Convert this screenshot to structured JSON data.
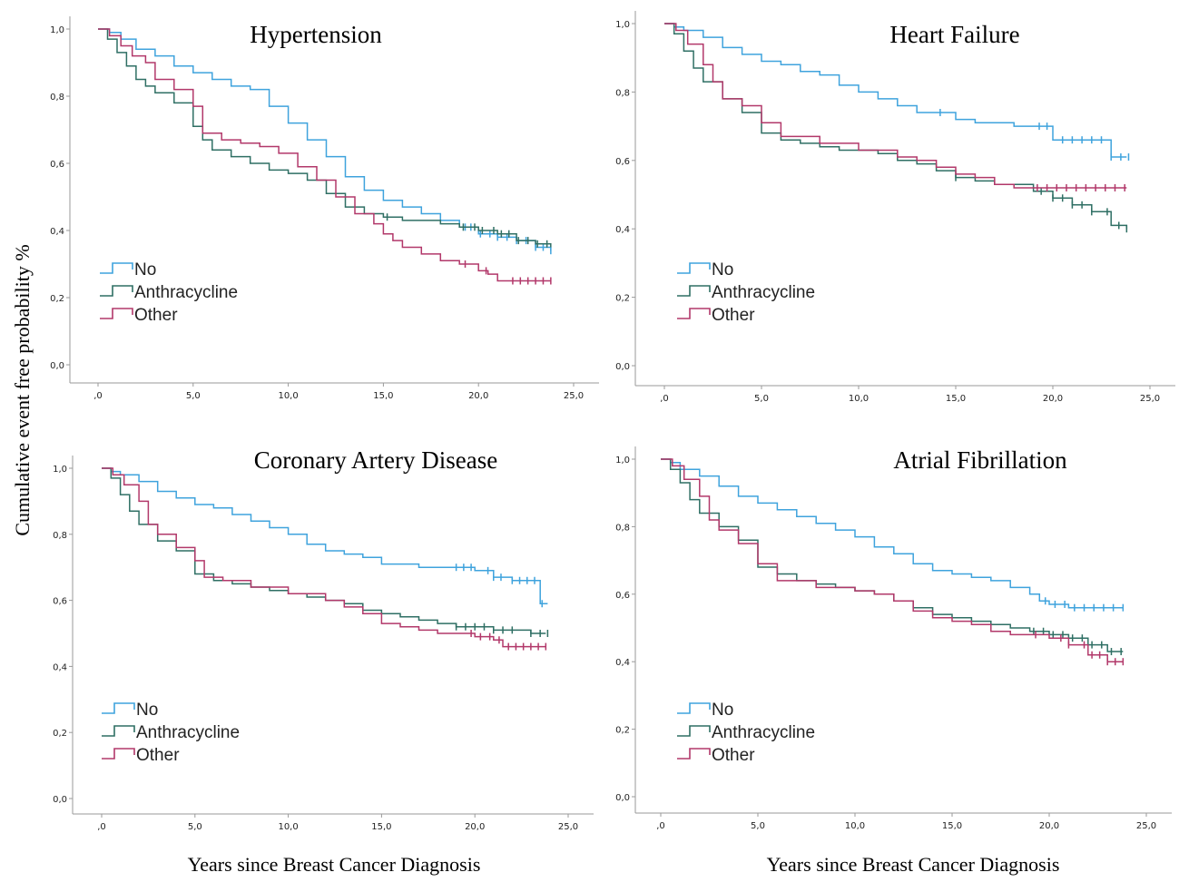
{
  "figure": {
    "ylabel": "Cumulative event  free probability  %",
    "xlabel": "Years since Breast Cancer Diagnosis"
  },
  "colors": {
    "No": "#3fa3dd",
    "Anthracycline": "#2f6f64",
    "Other": "#b2386a",
    "axis": "#9a9a9a"
  },
  "chart_data": [
    {
      "type": "line",
      "step": true,
      "title": "Hypertension",
      "xlim": [
        0,
        25
      ],
      "ylim": [
        0,
        1
      ],
      "x_ticks": [
        ",0",
        "5,0",
        "10,0",
        "15,0",
        "20,0",
        "25,0"
      ],
      "y_ticks": [
        "0,0",
        "0,2",
        "0,4",
        "0,6",
        "0,8",
        "1,0"
      ],
      "legend": [
        "No",
        "Anthracycline",
        "Other"
      ],
      "series": [
        {
          "name": "No",
          "x": [
            0,
            0.6,
            1.2,
            2.0,
            3.0,
            4.0,
            5.0,
            6.0,
            7.0,
            8.0,
            9.0,
            10.0,
            11.0,
            12.0,
            13.0,
            14.0,
            15.0,
            16.0,
            17.0,
            18.0,
            19.0,
            20.0,
            21.0,
            22.0,
            23.0,
            23.8
          ],
          "y": [
            1.0,
            0.99,
            0.97,
            0.94,
            0.92,
            0.89,
            0.87,
            0.85,
            0.83,
            0.82,
            0.77,
            0.72,
            0.67,
            0.62,
            0.56,
            0.52,
            0.49,
            0.47,
            0.45,
            0.43,
            0.41,
            0.39,
            0.38,
            0.37,
            0.35,
            0.34
          ],
          "censor_x": [
            19.3,
            19.6,
            20.1,
            20.6,
            21.0,
            21.5,
            22.0,
            22.5,
            23.0,
            23.4,
            23.8
          ]
        },
        {
          "name": "Anthracycline",
          "x": [
            0,
            0.5,
            1.0,
            1.5,
            2.0,
            2.5,
            3.0,
            4.0,
            5.0,
            5.5,
            6.0,
            7.0,
            8.0,
            9.0,
            10.0,
            11.0,
            12.0,
            13.0,
            14.0,
            15.0,
            16.0,
            17.0,
            18.0,
            19.0,
            20.0,
            21.0,
            22.0,
            23.0,
            23.8
          ],
          "y": [
            1.0,
            0.97,
            0.93,
            0.89,
            0.85,
            0.83,
            0.81,
            0.78,
            0.71,
            0.67,
            0.64,
            0.62,
            0.6,
            0.58,
            0.57,
            0.55,
            0.51,
            0.47,
            0.45,
            0.44,
            0.43,
            0.43,
            0.42,
            0.41,
            0.4,
            0.39,
            0.37,
            0.36,
            0.35
          ],
          "censor_x": [
            15.2,
            19.2,
            19.8,
            20.2,
            20.8,
            21.2,
            21.6,
            22.1,
            22.6,
            23.1,
            23.6
          ]
        },
        {
          "name": "Other",
          "x": [
            0,
            0.6,
            1.2,
            1.8,
            2.5,
            3.0,
            4.0,
            5.0,
            5.5,
            6.5,
            7.5,
            8.5,
            9.5,
            10.5,
            11.5,
            12.5,
            13.5,
            14.5,
            15.0,
            15.5,
            16.0,
            17.0,
            18.0,
            19.0,
            20.0,
            20.5,
            21.0,
            22.0,
            23.0,
            23.8
          ],
          "y": [
            1.0,
            0.98,
            0.95,
            0.92,
            0.9,
            0.85,
            0.82,
            0.77,
            0.69,
            0.67,
            0.66,
            0.65,
            0.63,
            0.59,
            0.55,
            0.5,
            0.45,
            0.42,
            0.39,
            0.37,
            0.35,
            0.33,
            0.31,
            0.3,
            0.28,
            0.27,
            0.25,
            0.25,
            0.25,
            0.25
          ],
          "censor_x": [
            19.3,
            20.4,
            21.8,
            22.2,
            22.6,
            23.0,
            23.4,
            23.8
          ]
        }
      ]
    },
    {
      "type": "line",
      "step": true,
      "title": "Heart Failure",
      "xlim": [
        0,
        25
      ],
      "ylim": [
        0,
        1
      ],
      "x_ticks": [
        ",0",
        "5,0",
        "10,0",
        "15,0",
        "20,0",
        "25,0"
      ],
      "y_ticks": [
        "0,0",
        "0,2",
        "0,4",
        "0,6",
        "0,8",
        "1,0"
      ],
      "legend": [
        "No",
        "Anthracycline",
        "Other"
      ],
      "series": [
        {
          "name": "No",
          "x": [
            0,
            0.5,
            1.0,
            2.0,
            3.0,
            4.0,
            5.0,
            6.0,
            7.0,
            8.0,
            9.0,
            10.0,
            11.0,
            12.0,
            13.0,
            14.0,
            15.0,
            16.0,
            17.0,
            18.0,
            19.0,
            20.0,
            21.0,
            22.0,
            23.0,
            23.8
          ],
          "y": [
            1.0,
            0.99,
            0.98,
            0.96,
            0.93,
            0.91,
            0.89,
            0.88,
            0.86,
            0.85,
            0.82,
            0.8,
            0.78,
            0.76,
            0.74,
            0.74,
            0.72,
            0.71,
            0.71,
            0.7,
            0.7,
            0.66,
            0.66,
            0.66,
            0.61,
            0.61
          ],
          "censor_x": [
            14.2,
            19.3,
            19.7,
            20.5,
            21.0,
            21.5,
            22.0,
            22.5,
            23.0,
            23.5,
            23.9
          ]
        },
        {
          "name": "Anthracycline",
          "x": [
            0,
            0.5,
            1.0,
            1.5,
            2.0,
            3.0,
            4.0,
            5.0,
            6.0,
            7.0,
            8.0,
            9.0,
            10.0,
            11.0,
            12.0,
            13.0,
            14.0,
            15.0,
            16.0,
            17.0,
            18.0,
            19.0,
            20.0,
            21.0,
            22.0,
            23.0,
            23.8
          ],
          "y": [
            1.0,
            0.97,
            0.92,
            0.87,
            0.83,
            0.78,
            0.74,
            0.68,
            0.66,
            0.65,
            0.64,
            0.63,
            0.63,
            0.62,
            0.6,
            0.59,
            0.57,
            0.55,
            0.54,
            0.53,
            0.53,
            0.51,
            0.49,
            0.47,
            0.45,
            0.41,
            0.4
          ],
          "censor_x": [
            15.0,
            19.4,
            20.0,
            20.5,
            21.0,
            21.5,
            22.0,
            22.8,
            23.4,
            23.8
          ]
        },
        {
          "name": "Other",
          "x": [
            0,
            0.6,
            1.2,
            2.0,
            2.5,
            3.0,
            4.0,
            5.0,
            6.0,
            8.0,
            10.0,
            12.0,
            13.0,
            14.0,
            15.0,
            16.0,
            17.0,
            18.0,
            19.0,
            20.0,
            21.0,
            22.0,
            23.0,
            23.8
          ],
          "y": [
            1.0,
            0.98,
            0.94,
            0.88,
            0.83,
            0.78,
            0.76,
            0.71,
            0.67,
            0.65,
            0.63,
            0.61,
            0.6,
            0.58,
            0.56,
            0.55,
            0.53,
            0.52,
            0.52,
            0.52,
            0.52,
            0.52,
            0.52,
            0.52
          ],
          "censor_x": [
            19.2,
            19.7,
            20.2,
            20.7,
            21.2,
            21.7,
            22.2,
            22.7,
            23.2,
            23.7
          ]
        }
      ]
    },
    {
      "type": "line",
      "step": true,
      "title": "Coronary Artery Disease",
      "xlim": [
        0,
        25
      ],
      "ylim": [
        0,
        1
      ],
      "x_ticks": [
        ",0",
        "5,0",
        "10,0",
        "15,0",
        "20,0",
        "25,0"
      ],
      "y_ticks": [
        "0,0",
        "0,2",
        "0,4",
        "0,6",
        "0,8",
        "1,0"
      ],
      "legend": [
        "No",
        "Anthracycline",
        "Other"
      ],
      "series": [
        {
          "name": "No",
          "x": [
            0,
            0.5,
            1.0,
            2.0,
            3.0,
            4.0,
            5.0,
            6.0,
            7.0,
            8.0,
            9.0,
            10.0,
            11.0,
            12.0,
            13.0,
            14.0,
            15.0,
            16.0,
            17.0,
            18.0,
            19.0,
            20.0,
            21.0,
            22.0,
            23.0,
            23.5,
            23.9
          ],
          "y": [
            1.0,
            0.99,
            0.98,
            0.96,
            0.93,
            0.91,
            0.89,
            0.88,
            0.86,
            0.84,
            0.82,
            0.8,
            0.77,
            0.75,
            0.74,
            0.73,
            0.71,
            0.71,
            0.7,
            0.7,
            0.7,
            0.69,
            0.67,
            0.66,
            0.66,
            0.59,
            0.59
          ],
          "censor_x": [
            19.0,
            19.4,
            19.8,
            20.7,
            21.0,
            21.4,
            22.0,
            22.4,
            22.8,
            23.2,
            23.6
          ]
        },
        {
          "name": "Anthracycline",
          "x": [
            0,
            0.5,
            1.0,
            1.5,
            2.0,
            3.0,
            4.0,
            5.0,
            6.0,
            7.0,
            8.0,
            9.0,
            10.0,
            11.0,
            12.0,
            13.0,
            14.0,
            15.0,
            16.0,
            17.0,
            18.0,
            19.0,
            20.0,
            21.0,
            22.0,
            23.0,
            23.8
          ],
          "y": [
            1.0,
            0.97,
            0.92,
            0.87,
            0.83,
            0.78,
            0.75,
            0.68,
            0.66,
            0.65,
            0.64,
            0.63,
            0.62,
            0.61,
            0.6,
            0.59,
            0.57,
            0.56,
            0.55,
            0.54,
            0.53,
            0.52,
            0.52,
            0.51,
            0.51,
            0.5,
            0.5
          ],
          "censor_x": [
            19.0,
            19.5,
            20.0,
            20.5,
            21.0,
            21.5,
            22.0,
            23.0,
            23.5,
            23.9
          ]
        },
        {
          "name": "Other",
          "x": [
            0,
            0.6,
            1.2,
            2.0,
            2.5,
            3.0,
            4.0,
            5.0,
            5.5,
            6.5,
            8.0,
            10.0,
            11.0,
            12.0,
            13.0,
            14.0,
            15.0,
            16.0,
            17.0,
            18.0,
            19.0,
            20.0,
            21.0,
            21.5,
            22.0,
            23.0,
            23.8
          ],
          "y": [
            1.0,
            0.98,
            0.95,
            0.9,
            0.83,
            0.8,
            0.76,
            0.72,
            0.67,
            0.66,
            0.64,
            0.62,
            0.62,
            0.6,
            0.58,
            0.56,
            0.53,
            0.52,
            0.51,
            0.5,
            0.5,
            0.49,
            0.48,
            0.46,
            0.46,
            0.46,
            0.46
          ],
          "censor_x": [
            19.8,
            20.3,
            20.8,
            21.3,
            21.8,
            22.2,
            22.6,
            23.0,
            23.4,
            23.8
          ]
        }
      ]
    },
    {
      "type": "line",
      "step": true,
      "title": "Atrial Fibrillation",
      "xlim": [
        0,
        25
      ],
      "ylim": [
        0,
        1
      ],
      "x_ticks": [
        ",0",
        "5,0",
        "10,0",
        "15,0",
        "20,0",
        "25,0"
      ],
      "y_ticks": [
        "0,0",
        "0,2",
        "0,4",
        "0,6",
        "0,8",
        "1,0"
      ],
      "legend": [
        "No",
        "Anthracycline",
        "Other"
      ],
      "series": [
        {
          "name": "No",
          "x": [
            0,
            0.5,
            1.0,
            2.0,
            3.0,
            4.0,
            5.0,
            6.0,
            7.0,
            8.0,
            9.0,
            10.0,
            11.0,
            12.0,
            13.0,
            14.0,
            15.0,
            16.0,
            17.0,
            18.0,
            19.0,
            19.5,
            20.0,
            21.0,
            22.0,
            23.0,
            23.8
          ],
          "y": [
            1.0,
            0.99,
            0.97,
            0.95,
            0.92,
            0.89,
            0.87,
            0.85,
            0.83,
            0.81,
            0.79,
            0.77,
            0.74,
            0.72,
            0.69,
            0.67,
            0.66,
            0.65,
            0.64,
            0.62,
            0.6,
            0.58,
            0.57,
            0.56,
            0.56,
            0.56,
            0.56
          ],
          "censor_x": [
            19.8,
            20.3,
            20.8,
            21.3,
            21.8,
            22.3,
            22.8,
            23.3,
            23.8
          ]
        },
        {
          "name": "Anthracycline",
          "x": [
            0,
            0.5,
            1.0,
            1.5,
            2.0,
            3.0,
            4.0,
            5.0,
            6.0,
            7.0,
            8.0,
            9.0,
            10.0,
            11.0,
            12.0,
            13.0,
            14.0,
            15.0,
            16.0,
            17.0,
            18.0,
            19.0,
            20.0,
            21.0,
            22.0,
            23.0,
            23.8
          ],
          "y": [
            1.0,
            0.97,
            0.93,
            0.88,
            0.84,
            0.8,
            0.76,
            0.68,
            0.66,
            0.64,
            0.63,
            0.62,
            0.61,
            0.6,
            0.58,
            0.56,
            0.54,
            0.53,
            0.52,
            0.51,
            0.5,
            0.49,
            0.48,
            0.47,
            0.45,
            0.43,
            0.43
          ],
          "censor_x": [
            19.2,
            19.7,
            20.2,
            20.7,
            21.2,
            21.7,
            22.2,
            22.7,
            23.2,
            23.7
          ]
        },
        {
          "name": "Other",
          "x": [
            0,
            0.6,
            1.2,
            2.0,
            2.5,
            3.0,
            4.0,
            5.0,
            6.0,
            8.0,
            10.0,
            11.0,
            12.0,
            13.0,
            14.0,
            15.0,
            16.0,
            17.0,
            18.0,
            19.0,
            20.0,
            21.0,
            22.0,
            23.0,
            23.8
          ],
          "y": [
            1.0,
            0.98,
            0.94,
            0.89,
            0.82,
            0.79,
            0.75,
            0.69,
            0.64,
            0.62,
            0.61,
            0.6,
            0.58,
            0.55,
            0.53,
            0.52,
            0.51,
            0.49,
            0.48,
            0.48,
            0.47,
            0.45,
            0.42,
            0.4,
            0.4
          ],
          "censor_x": [
            19.3,
            20.6,
            21.0,
            21.8,
            22.2,
            22.6,
            23.0,
            23.4,
            23.8
          ]
        }
      ]
    }
  ]
}
